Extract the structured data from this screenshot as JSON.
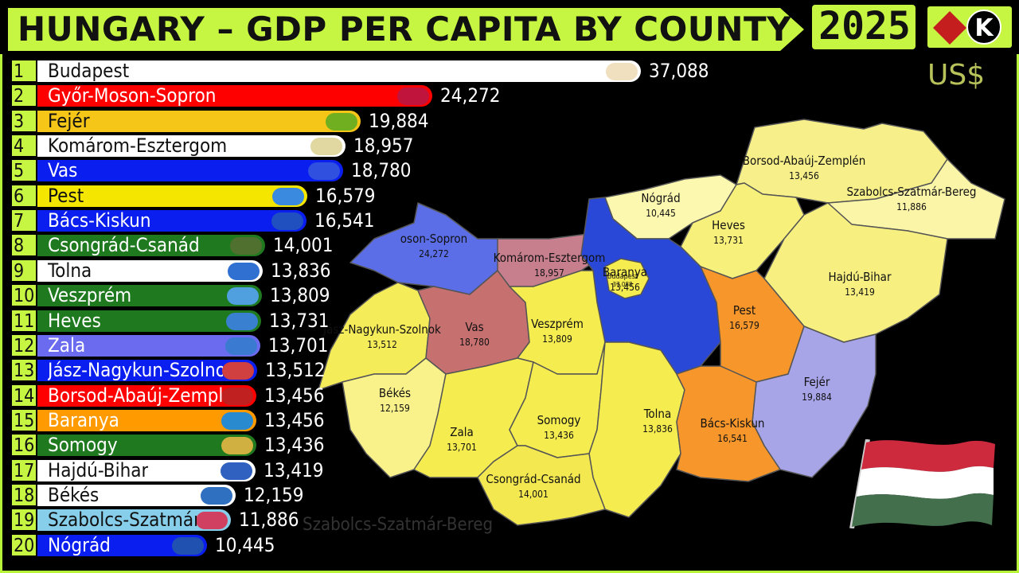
{
  "header": {
    "title": "HUNGARY – GDP PER CAPITA BY COUNTY",
    "year": "2025",
    "logo_letter": "K",
    "currency": "US$",
    "overflow_label": "Szabolcs-Szatmár-Bereg"
  },
  "colors": {
    "accent": "#c6f542",
    "white": "#ffffff",
    "red": "#ff0000",
    "gold": "#f5c518",
    "blue": "#0a1ef0",
    "green": "#1f7a1f",
    "lavender": "#6b6bf0",
    "orange": "#ff9a00",
    "skyblue": "#87ceeb"
  },
  "chart_data": {
    "type": "bar",
    "title": "HUNGARY – GDP PER CAPITA BY COUNTY",
    "unit": "US$",
    "year": "2025",
    "ranks": [
      "1",
      "2",
      "3",
      "4",
      "5",
      "6",
      "7",
      "8",
      "9",
      "10",
      "11",
      "12",
      "13",
      "14",
      "15",
      "16",
      "17",
      "18",
      "19",
      "20"
    ],
    "categories": [
      "Budapest",
      "Győr-Moson-Sopron",
      "Fejér",
      "Komárom-Esztergom",
      "Vas",
      "Pest",
      "Bács-Kiskun",
      "Csongrád-Csanád",
      "Tolna",
      "Veszprém",
      "Heves",
      "Zala",
      "Jász-Nagykun-Szolnok",
      "Borsod-Abaúj-Zemplén",
      "Baranya",
      "Somogy",
      "Hajdú-Bihar",
      "Békés",
      "Szabolcs-Szatmár-Bereg",
      "Nógrád"
    ],
    "bar_labels": [
      "Budapest",
      "Győr-Moson-Sopron",
      "Fejér",
      "Komárom-Esztergom",
      "Vas",
      "Pest",
      "Bács-Kiskun",
      "Csongrád-Csanád",
      "Tolna",
      "Veszprém",
      "Heves",
      "Zala",
      "Jász-Nagykun-Szolnok",
      "Borsod-Abaúj-Zemplé",
      "Baranya",
      "Somogy",
      "Hajdú-Bihar",
      "Békés",
      "Szabolcs-Szatmár-",
      "Nógrád"
    ],
    "values": [
      37088,
      24272,
      19884,
      18957,
      18780,
      16579,
      16541,
      14001,
      13836,
      13809,
      13731,
      13701,
      13512,
      13456,
      13456,
      13436,
      13419,
      12159,
      11886,
      10445
    ],
    "value_labels": [
      "37,088",
      "24,272",
      "19,884",
      "18,957",
      "18,780",
      "16,579",
      "16,541",
      "14,001",
      "13,836",
      "13,809",
      "13,731",
      "13,701",
      "13,512",
      "13,456",
      "13,456",
      "13,436",
      "13,419",
      "12,159",
      "11,886",
      "10,445"
    ],
    "bar_colors": [
      "#ffffff",
      "#ff0000",
      "#f5c518",
      "#ffffff",
      "#0a1ef0",
      "#f5e600",
      "#0a1ef0",
      "#1f7a1f",
      "#ffffff",
      "#1f7a1f",
      "#1f7a1f",
      "#6b6bf0",
      "#0a1ef0",
      "#ff0000",
      "#ff9a00",
      "#1f7a1f",
      "#ffffff",
      "#ffffff",
      "#87ceeb",
      "#0a1ef0"
    ],
    "label_colors": [
      "#111111",
      "#ffffff",
      "#111111",
      "#111111",
      "#ffffff",
      "#111111",
      "#ffffff",
      "#ffffff",
      "#111111",
      "#ffffff",
      "#ffffff",
      "#ffffff",
      "#ffffff",
      "#ffffff",
      "#ffffff",
      "#ffffff",
      "#111111",
      "#111111",
      "#111111",
      "#ffffff"
    ],
    "badge_colors": [
      "#f0e0c0",
      "#c0143c",
      "#70b020",
      "#e0d8a0",
      "#3050e0",
      "#3a8ae0",
      "#2050c0",
      "#507030",
      "#3070d0",
      "#50a0e0",
      "#3a80d0",
      "#3a7ad0",
      "#d04040",
      "#c02020",
      "#2a8ad0",
      "#d0b040",
      "#3060c0",
      "#3070c0",
      "#d04060",
      "#2050b0"
    ]
  },
  "map": {
    "regions": [
      {
        "name": "Borsod-Abaúj-Zemplén",
        "value": "13,456",
        "color": "#f7f08a"
      },
      {
        "name": "Szabolcs-Szatmár-Bereg",
        "value": "11,886",
        "color": "#fbf5a8"
      },
      {
        "name": "Nógrád",
        "value": "10,445",
        "color": "#fdf8b0"
      },
      {
        "name": "Heves",
        "value": "13,731",
        "color": "#f7f07a"
      },
      {
        "name": "Hajdú-Bihar",
        "value": "13,419",
        "color": "#f7f080"
      },
      {
        "name": "Győr-Moson-Sopron",
        "value": "24,272",
        "color": "#5b6ee8"
      },
      {
        "name": "Komárom-Esztergom",
        "value": "18,957",
        "color": "#c77f8e"
      },
      {
        "name": "Budapest",
        "value": "37,088",
        "color": "#2a48d8"
      },
      {
        "name": "Pest",
        "value": "16,579",
        "color": "#f7962a"
      },
      {
        "name": "Jász-Nagykun-Szolnok",
        "value": "13,512",
        "color": "#f5ec5a"
      },
      {
        "name": "Vas",
        "value": "18,780",
        "color": "#c77070"
      },
      {
        "name": "Veszprém",
        "value": "13,809",
        "color": "#f5ec50"
      },
      {
        "name": "Fejér",
        "value": "19,884",
        "color": "#a7a5e8"
      },
      {
        "name": "Békés",
        "value": "12,159",
        "color": "#f9f28a"
      },
      {
        "name": "Zala",
        "value": "13,701",
        "color": "#f5ec50"
      },
      {
        "name": "Somogy",
        "value": "13,436",
        "color": "#f5ec50"
      },
      {
        "name": "Tolna",
        "value": "13,836",
        "color": "#f5ec50"
      },
      {
        "name": "Bács-Kiskun",
        "value": "16,541",
        "color": "#f7962a"
      },
      {
        "name": "Csongrád-Csanád",
        "value": "14,001",
        "color": "#f3e850"
      },
      {
        "name": "Baranya",
        "value": "13,456",
        "color": "#f5ec50"
      }
    ],
    "map_labels": {
      "Győr-Moson-Sopron": "oson-Sopron"
    }
  },
  "flag": {
    "colors": [
      "#cd2a3e",
      "#ffffff",
      "#436f4d"
    ]
  }
}
